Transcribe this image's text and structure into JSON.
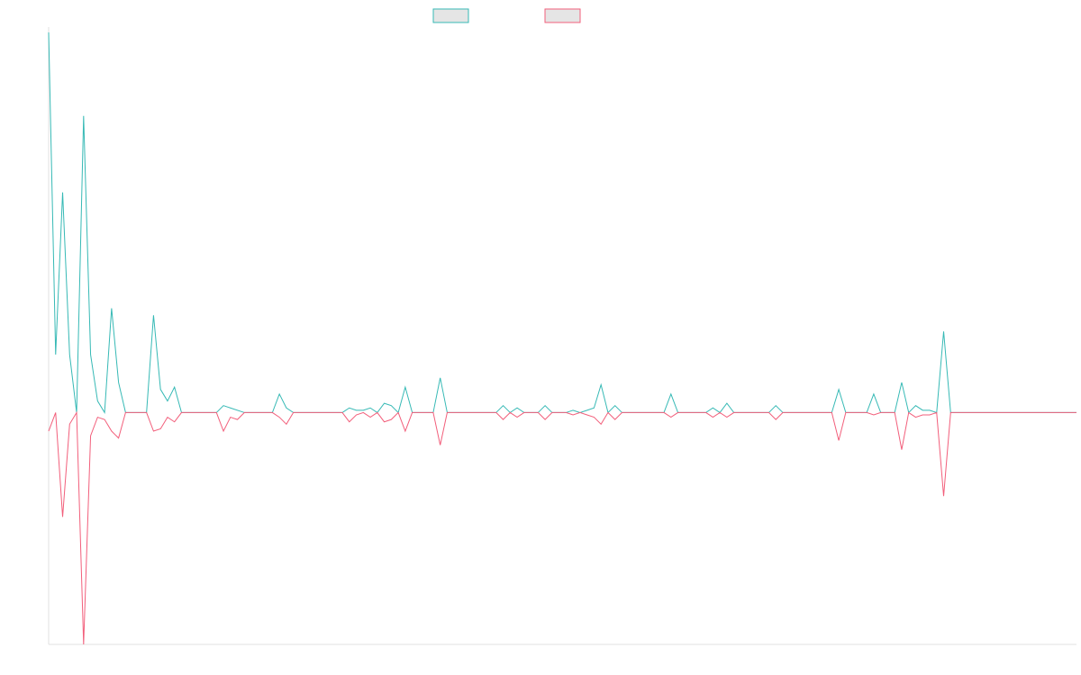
{
  "colors": {
    "background": "#ffffff",
    "axis": "#e2e2e2",
    "legend_fill": "#e5e5e5"
  },
  "chart_data": {
    "type": "line",
    "title": "",
    "xlabel": "",
    "ylabel": "",
    "grid": false,
    "legend_position": "top-center",
    "xlim": [
      0,
      147
    ],
    "ylim": [
      -100,
      164
    ],
    "series": [
      {
        "color": "#36b9b5",
        "points": [
          [
            0,
            164
          ],
          [
            1,
            25
          ],
          [
            2,
            95
          ],
          [
            3,
            25
          ],
          [
            4,
            0
          ],
          [
            5,
            128
          ],
          [
            6,
            25
          ],
          [
            7,
            5
          ],
          [
            8,
            0
          ],
          [
            9,
            45
          ],
          [
            10,
            13
          ],
          [
            11,
            0
          ],
          [
            12,
            0
          ],
          [
            13,
            0
          ],
          [
            14,
            0
          ],
          [
            15,
            42
          ],
          [
            16,
            10
          ],
          [
            17,
            5
          ],
          [
            18,
            11
          ],
          [
            19,
            0
          ],
          [
            24,
            0
          ],
          [
            25,
            3
          ],
          [
            28,
            0
          ],
          [
            32,
            0
          ],
          [
            33,
            8
          ],
          [
            34,
            2
          ],
          [
            35,
            0
          ],
          [
            42,
            0
          ],
          [
            43,
            2
          ],
          [
            44,
            1
          ],
          [
            45,
            1
          ],
          [
            46,
            2
          ],
          [
            47,
            0
          ],
          [
            48,
            4
          ],
          [
            49,
            3
          ],
          [
            50,
            0
          ],
          [
            51,
            11
          ],
          [
            52,
            0
          ],
          [
            55,
            0
          ],
          [
            56,
            15
          ],
          [
            57,
            0
          ],
          [
            64,
            0
          ],
          [
            65,
            3
          ],
          [
            66,
            0
          ],
          [
            67,
            2
          ],
          [
            68,
            0
          ],
          [
            70,
            0
          ],
          [
            71,
            3
          ],
          [
            72,
            0
          ],
          [
            74,
            0
          ],
          [
            75,
            1
          ],
          [
            76,
            0
          ],
          [
            77,
            1
          ],
          [
            78,
            2
          ],
          [
            79,
            12
          ],
          [
            80,
            0
          ],
          [
            81,
            3
          ],
          [
            82,
            0
          ],
          [
            88,
            0
          ],
          [
            89,
            8
          ],
          [
            90,
            0
          ],
          [
            94,
            0
          ],
          [
            95,
            2
          ],
          [
            96,
            0
          ],
          [
            97,
            4
          ],
          [
            98,
            0
          ],
          [
            103,
            0
          ],
          [
            104,
            3
          ],
          [
            105,
            0
          ],
          [
            112,
            0
          ],
          [
            113,
            10
          ],
          [
            114,
            0
          ],
          [
            117,
            0
          ],
          [
            118,
            8
          ],
          [
            119,
            0
          ],
          [
            121,
            0
          ],
          [
            122,
            13
          ],
          [
            123,
            0
          ],
          [
            124,
            3
          ],
          [
            125,
            1
          ],
          [
            126,
            1
          ],
          [
            127,
            0
          ],
          [
            128,
            35
          ],
          [
            129,
            0
          ]
        ]
      },
      {
        "color": "#f25f7b",
        "points": [
          [
            0,
            -8
          ],
          [
            1,
            0
          ],
          [
            2,
            -45
          ],
          [
            3,
            -5
          ],
          [
            4,
            0
          ],
          [
            5,
            -100
          ],
          [
            6,
            -10
          ],
          [
            7,
            -2
          ],
          [
            8,
            -3
          ],
          [
            9,
            -8
          ],
          [
            10,
            -11
          ],
          [
            11,
            0
          ],
          [
            12,
            0
          ],
          [
            13,
            0
          ],
          [
            14,
            0
          ],
          [
            15,
            -8
          ],
          [
            16,
            -7
          ],
          [
            17,
            -2
          ],
          [
            18,
            -4
          ],
          [
            19,
            0
          ],
          [
            24,
            0
          ],
          [
            25,
            -8
          ],
          [
            26,
            -2
          ],
          [
            27,
            -3
          ],
          [
            28,
            0
          ],
          [
            32,
            0
          ],
          [
            33,
            -2
          ],
          [
            34,
            -5
          ],
          [
            35,
            0
          ],
          [
            42,
            0
          ],
          [
            43,
            -4
          ],
          [
            44,
            -1
          ],
          [
            45,
            0
          ],
          [
            46,
            -2
          ],
          [
            47,
            0
          ],
          [
            48,
            -4
          ],
          [
            49,
            -3
          ],
          [
            50,
            0
          ],
          [
            51,
            -8
          ],
          [
            52,
            0
          ],
          [
            55,
            0
          ],
          [
            56,
            -14
          ],
          [
            57,
            0
          ],
          [
            64,
            0
          ],
          [
            65,
            -3
          ],
          [
            66,
            0
          ],
          [
            67,
            -2
          ],
          [
            68,
            0
          ],
          [
            70,
            0
          ],
          [
            71,
            -3
          ],
          [
            72,
            0
          ],
          [
            74,
            0
          ],
          [
            75,
            -1
          ],
          [
            76,
            0
          ],
          [
            77,
            -1
          ],
          [
            78,
            -2
          ],
          [
            79,
            -5
          ],
          [
            80,
            0
          ],
          [
            81,
            -3
          ],
          [
            82,
            0
          ],
          [
            88,
            0
          ],
          [
            89,
            -2
          ],
          [
            90,
            0
          ],
          [
            94,
            0
          ],
          [
            95,
            -2
          ],
          [
            96,
            0
          ],
          [
            97,
            -2
          ],
          [
            98,
            0
          ],
          [
            103,
            0
          ],
          [
            104,
            -3
          ],
          [
            105,
            0
          ],
          [
            112,
            0
          ],
          [
            113,
            -12
          ],
          [
            114,
            0
          ],
          [
            117,
            0
          ],
          [
            118,
            -1
          ],
          [
            119,
            0
          ],
          [
            121,
            0
          ],
          [
            122,
            -16
          ],
          [
            123,
            0
          ],
          [
            124,
            -2
          ],
          [
            125,
            -1
          ],
          [
            126,
            -1
          ],
          [
            127,
            0
          ],
          [
            128,
            -36
          ],
          [
            129,
            0
          ]
        ]
      }
    ]
  }
}
